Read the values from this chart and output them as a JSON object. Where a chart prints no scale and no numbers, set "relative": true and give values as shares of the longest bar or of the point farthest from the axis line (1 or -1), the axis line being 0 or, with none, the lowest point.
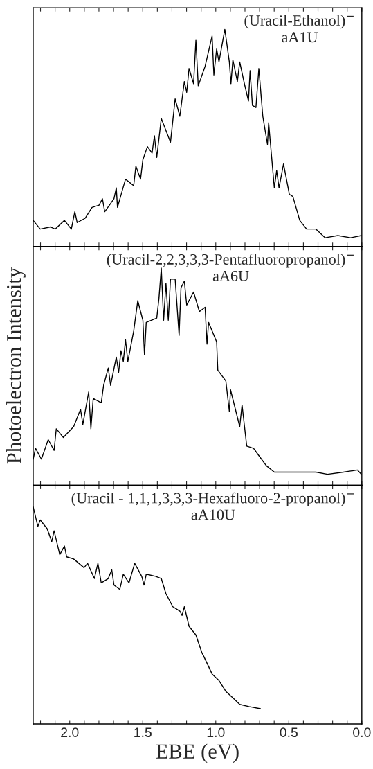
{
  "chart_data": [
    {
      "type": "line",
      "relative": true,
      "xlim": [
        2.25,
        0.0
      ],
      "tick_labels": false,
      "xticks": [
        {
          "value": 2.2,
          "label": null
        },
        {
          "value": 2.1,
          "label": null
        },
        {
          "value": 2.0,
          "label": null
        },
        {
          "value": 1.9,
          "label": null
        },
        {
          "value": 1.8,
          "label": null
        },
        {
          "value": 1.7,
          "label": null
        },
        {
          "value": 1.6,
          "label": null
        },
        {
          "value": 1.5,
          "label": null
        },
        {
          "value": 1.4,
          "label": null
        },
        {
          "value": 1.3,
          "label": null
        },
        {
          "value": 1.2,
          "label": null
        },
        {
          "value": 1.1,
          "label": null
        },
        {
          "value": 1.0,
          "label": null
        },
        {
          "value": 0.9,
          "label": null
        },
        {
          "value": 0.8,
          "label": null
        },
        {
          "value": 0.7,
          "label": null
        },
        {
          "value": 0.6,
          "label": null
        },
        {
          "value": 0.5,
          "label": null
        },
        {
          "value": 0.4,
          "label": null
        },
        {
          "value": 0.3,
          "label": null
        },
        {
          "value": 0.2,
          "label": null
        },
        {
          "value": 0.1,
          "label": null
        },
        {
          "value": 0.0,
          "label": null
        }
      ],
      "annotations": [
        "(Uracil-Ethanol)$^{−}$",
        "aA1U"
      ],
      "x": [
        2.25,
        2.202,
        2.131,
        2.1,
        2.036,
        1.989,
        1.965,
        1.949,
        1.894,
        1.847,
        1.799,
        1.776,
        1.76,
        1.697,
        1.681,
        1.673,
        1.618,
        1.562,
        1.547,
        1.515,
        1.499,
        1.468,
        1.436,
        1.42,
        1.404,
        1.373,
        1.31,
        1.278,
        1.246,
        1.215,
        1.199,
        1.183,
        1.152,
        1.136,
        1.12,
        1.073,
        1.025,
        1.013,
        0.994,
        0.978,
        0.938,
        0.907,
        0.896,
        0.883,
        0.852,
        0.836,
        0.804,
        0.776,
        0.765,
        0.749,
        0.725,
        0.705,
        0.678,
        0.646,
        0.638,
        0.599,
        0.583,
        0.567,
        0.536,
        0.496,
        0.472,
        0.425,
        0.378,
        0.314,
        0.251,
        0.164,
        0.077,
        0.003
      ],
      "series": [
        {
          "color": "#000000",
          "values": [
            0.12,
            0.08,
            0.09,
            0.08,
            0.12,
            0.08,
            0.16,
            0.11,
            0.13,
            0.18,
            0.19,
            0.22,
            0.16,
            0.22,
            0.27,
            0.18,
            0.31,
            0.28,
            0.37,
            0.31,
            0.4,
            0.46,
            0.43,
            0.51,
            0.41,
            0.59,
            0.48,
            0.68,
            0.6,
            0.76,
            0.71,
            0.82,
            0.75,
            0.95,
            0.74,
            0.83,
            0.97,
            0.79,
            0.91,
            0.85,
            1.0,
            0.85,
            0.75,
            0.86,
            0.76,
            0.85,
            0.75,
            0.67,
            0.81,
            0.65,
            0.64,
            0.82,
            0.6,
            0.47,
            0.57,
            0.27,
            0.35,
            0.27,
            0.38,
            0.24,
            0.23,
            0.12,
            0.08,
            0.08,
            0.04,
            0.05,
            0.04,
            0.05
          ]
        }
      ]
    },
    {
      "type": "line",
      "relative": true,
      "xlim": [
        2.25,
        0.0
      ],
      "tick_labels": false,
      "ylabel": "Photoelectron Intensity",
      "xticks": [
        {
          "value": 2.2,
          "label": null
        },
        {
          "value": 2.1,
          "label": null
        },
        {
          "value": 2.0,
          "label": null
        },
        {
          "value": 1.9,
          "label": null
        },
        {
          "value": 1.8,
          "label": null
        },
        {
          "value": 1.7,
          "label": null
        },
        {
          "value": 1.6,
          "label": null
        },
        {
          "value": 1.5,
          "label": null
        },
        {
          "value": 1.4,
          "label": null
        },
        {
          "value": 1.3,
          "label": null
        },
        {
          "value": 1.2,
          "label": null
        },
        {
          "value": 1.1,
          "label": null
        },
        {
          "value": 1.0,
          "label": null
        },
        {
          "value": 0.9,
          "label": null
        },
        {
          "value": 0.8,
          "label": null
        },
        {
          "value": 0.7,
          "label": null
        },
        {
          "value": 0.6,
          "label": null
        },
        {
          "value": 0.5,
          "label": null
        },
        {
          "value": 0.4,
          "label": null
        },
        {
          "value": 0.3,
          "label": null
        },
        {
          "value": 0.2,
          "label": null
        },
        {
          "value": 0.1,
          "label": null
        },
        {
          "value": 0.0,
          "label": null
        }
      ],
      "annotations": [
        "(Uracil-2,2,3,3,3-Pentafluoropropanol)$^{−}$",
        "aA6U"
      ],
      "x": [
        2.25,
        2.234,
        2.194,
        2.147,
        2.107,
        2.092,
        2.044,
        1.973,
        1.926,
        1.91,
        1.87,
        1.855,
        1.839,
        1.784,
        1.768,
        1.736,
        1.72,
        1.681,
        1.665,
        1.649,
        1.633,
        1.618,
        1.602,
        1.562,
        1.534,
        1.499,
        1.488,
        1.476,
        1.404,
        1.389,
        1.373,
        1.357,
        1.341,
        1.325,
        1.31,
        1.278,
        1.251,
        1.238,
        1.215,
        1.199,
        1.152,
        1.112,
        1.073,
        1.06,
        1.049,
        0.994,
        0.986,
        0.931,
        0.907,
        0.899,
        0.836,
        0.82,
        0.788,
        0.741,
        0.709,
        0.654,
        0.599,
        0.488,
        0.393,
        0.314,
        0.235,
        0.125,
        0.03,
        0.003
      ],
      "series": [
        {
          "color": "#000000",
          "values": [
            0.12,
            0.17,
            0.12,
            0.21,
            0.16,
            0.26,
            0.22,
            0.27,
            0.35,
            0.28,
            0.43,
            0.26,
            0.4,
            0.38,
            0.46,
            0.54,
            0.46,
            0.59,
            0.52,
            0.62,
            0.57,
            0.67,
            0.57,
            0.71,
            0.85,
            0.76,
            0.6,
            0.75,
            0.77,
            0.86,
            1.0,
            0.76,
            0.93,
            0.76,
            0.95,
            0.95,
            0.69,
            0.91,
            0.94,
            0.83,
            0.89,
            0.8,
            0.82,
            0.65,
            0.75,
            0.66,
            0.53,
            0.48,
            0.34,
            0.44,
            0.27,
            0.37,
            0.18,
            0.17,
            0.14,
            0.09,
            0.06,
            0.06,
            0.06,
            0.06,
            0.05,
            0.06,
            0.07,
            0.05
          ]
        }
      ]
    },
    {
      "type": "line",
      "relative": true,
      "xlim": [
        2.25,
        0.0
      ],
      "tick_labels": "x",
      "xlabel": "EBE (eV)",
      "xticks": [
        {
          "value": 2.2,
          "label": null
        },
        {
          "value": 2.1,
          "label": null
        },
        {
          "value": 2.0,
          "label": "2.0"
        },
        {
          "value": 1.9,
          "label": null
        },
        {
          "value": 1.8,
          "label": null
        },
        {
          "value": 1.7,
          "label": null
        },
        {
          "value": 1.6,
          "label": null
        },
        1.5,
        {
          "value": 1.4,
          "label": null
        },
        {
          "value": 1.3,
          "label": null
        },
        {
          "value": 1.2,
          "label": null
        },
        {
          "value": 1.1,
          "label": null
        },
        {
          "value": 1.0,
          "label": "1.0"
        },
        {
          "value": 0.9,
          "label": null
        },
        {
          "value": 0.8,
          "label": null
        },
        {
          "value": 0.7,
          "label": null
        },
        {
          "value": 0.6,
          "label": null
        },
        0.5,
        {
          "value": 0.4,
          "label": null
        },
        {
          "value": 0.3,
          "label": null
        },
        {
          "value": 0.2,
          "label": null
        },
        {
          "value": 0.1,
          "label": null
        },
        {
          "value": 0.0,
          "label": "0.0"
        }
      ],
      "annotations": [
        "(Uracil - 1,1,1,3,3,3-Hexafluoro-2-propanol)$^{−}$",
        "aA10U"
      ],
      "x": [
        2.25,
        2.218,
        2.202,
        2.155,
        2.123,
        2.107,
        2.068,
        2.036,
        2.021,
        1.973,
        1.902,
        1.878,
        1.831,
        1.807,
        1.784,
        1.736,
        1.712,
        1.697,
        1.657,
        1.633,
        1.594,
        1.555,
        1.507,
        1.491,
        1.476,
        1.412,
        1.373,
        1.341,
        1.294,
        1.246,
        1.231,
        1.215,
        1.183,
        1.136,
        1.096,
        1.081,
        1.025,
        0.978,
        0.931,
        0.883,
        0.836,
        0.773,
        0.694
      ],
      "series": [
        {
          "color": "#000000",
          "values": [
            1.0,
            0.91,
            0.94,
            0.9,
            0.84,
            0.89,
            0.78,
            0.82,
            0.77,
            0.76,
            0.72,
            0.74,
            0.67,
            0.74,
            0.65,
            0.67,
            0.71,
            0.64,
            0.62,
            0.69,
            0.65,
            0.74,
            0.68,
            0.64,
            0.69,
            0.68,
            0.67,
            0.6,
            0.54,
            0.52,
            0.5,
            0.54,
            0.45,
            0.41,
            0.33,
            0.31,
            0.23,
            0.2,
            0.15,
            0.12,
            0.09,
            0.08,
            0.07
          ]
        }
      ]
    }
  ]
}
